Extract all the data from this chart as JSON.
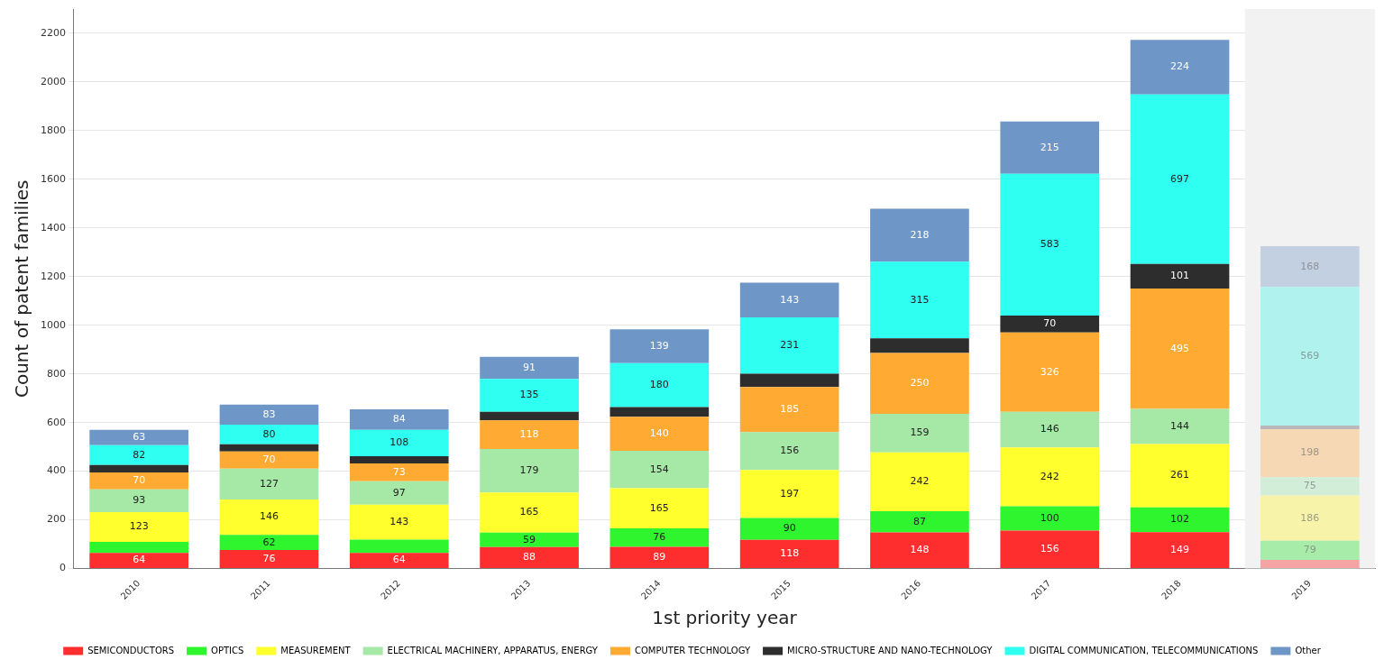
{
  "chart_data": {
    "type": "bar",
    "stacked": true,
    "xlabel": "1st priority year",
    "ylabel": "Count of patent families",
    "categories": [
      "2010",
      "2011",
      "2012",
      "2013",
      "2014",
      "2015",
      "2016",
      "2017",
      "2018",
      "2019"
    ],
    "series": [
      {
        "name": "SEMICONDUCTORS",
        "color": "#ff2e2e",
        "colors": [
          "#ff2e2e",
          "#ff2e2e",
          "#ff2e2e",
          "#ff2e2e",
          "#ff2e2e",
          "#ff2e2e",
          "#ff2e2e",
          "#ff2e2e",
          "#ff2e2e",
          "#f5a3a3"
        ],
        "values": [
          64,
          76,
          64,
          88,
          89,
          118,
          148,
          156,
          149,
          35
        ],
        "value_labels": [
          "64",
          "76",
          "64",
          "88",
          "89",
          "118",
          "148",
          "156",
          "149",
          null
        ]
      },
      {
        "name": "OPTICS",
        "color": "#2ef52e",
        "colors": [
          "#2ef52e",
          "#2ef52e",
          "#2ef52e",
          "#2ef52e",
          "#2ef52e",
          "#2ef52e",
          "#2ef52e",
          "#2ef52e",
          "#2ef52e",
          "#a8ecaa"
        ],
        "values": [
          45,
          62,
          55,
          59,
          76,
          90,
          87,
          100,
          102,
          79
        ],
        "value_labels": [
          null,
          "62",
          null,
          "59",
          "76",
          "90",
          "87",
          "100",
          "102",
          "79"
        ]
      },
      {
        "name": "MEASUREMENT",
        "color": "#ffff2e",
        "colors": [
          "#ffff2e",
          "#ffff2e",
          "#ffff2e",
          "#ffff2e",
          "#ffff2e",
          "#ffff2e",
          "#ffff2e",
          "#ffff2e",
          "#ffff2e",
          "#f7f3a8"
        ],
        "values": [
          123,
          146,
          143,
          165,
          165,
          197,
          242,
          242,
          261,
          186
        ],
        "value_labels": [
          "123",
          "146",
          "143",
          "165",
          "165",
          "197",
          "242",
          "242",
          "261",
          "186"
        ]
      },
      {
        "name": "ELECTRICAL MACHINERY, APPARATUS, ENERGY",
        "color": "#a6e8a6",
        "colors": [
          "#a6e8a6",
          "#a6e8a6",
          "#a6e8a6",
          "#a6e8a6",
          "#a6e8a6",
          "#a6e8a6",
          "#a6e8a6",
          "#a6e8a6",
          "#a6e8a6",
          "#d2eed8"
        ],
        "values": [
          93,
          127,
          97,
          179,
          154,
          156,
          159,
          146,
          144,
          75
        ],
        "value_labels": [
          "93",
          "127",
          "97",
          "179",
          "154",
          "156",
          "159",
          "146",
          "144",
          "75"
        ]
      },
      {
        "name": "COMPUTER TECHNOLOGY",
        "color": "#ffaa33",
        "colors": [
          "#ffaa33",
          "#ffaa33",
          "#ffaa33",
          "#ffaa33",
          "#ffaa33",
          "#ffaa33",
          "#ffaa33",
          "#ffaa33",
          "#ffaa33",
          "#f6d8b4"
        ],
        "values": [
          70,
          70,
          73,
          118,
          140,
          185,
          250,
          326,
          495,
          198
        ],
        "value_labels": [
          "70",
          "70",
          "73",
          "118",
          "140",
          "185",
          "250",
          "326",
          "495",
          "198"
        ]
      },
      {
        "name": "MICRO-STRUCTURE AND NANO-TECHNOLOGY",
        "color": "#2d2d2d",
        "colors": [
          "#2d2d2d",
          "#2d2d2d",
          "#2d2d2d",
          "#2d2d2d",
          "#2d2d2d",
          "#2d2d2d",
          "#2d2d2d",
          "#2d2d2d",
          "#2d2d2d",
          "#b8b8b8"
        ],
        "values": [
          30,
          30,
          30,
          35,
          40,
          55,
          60,
          70,
          101,
          15
        ],
        "value_labels": [
          null,
          null,
          null,
          null,
          null,
          null,
          null,
          "70",
          "101",
          null
        ]
      },
      {
        "name": "DIGITAL COMMUNICATION, TELECOMMUNICATIONS",
        "color": "#2efff0",
        "colors": [
          "#2efff0",
          "#2efff0",
          "#2efff0",
          "#2efff0",
          "#2efff0",
          "#2efff0",
          "#2efff0",
          "#2efff0",
          "#2efff0",
          "#b0f2ee"
        ],
        "values": [
          82,
          80,
          108,
          135,
          180,
          231,
          315,
          583,
          697,
          569
        ],
        "value_labels": [
          "82",
          "80",
          "108",
          "135",
          "180",
          "231",
          "315",
          "583",
          "697",
          "569"
        ]
      },
      {
        "name": "Other",
        "color": "#6e97c8",
        "colors": [
          "#6e97c8",
          "#6e97c8",
          "#6e97c8",
          "#6e97c8",
          "#6e97c8",
          "#6e97c8",
          "#6e97c8",
          "#6e97c8",
          "#6e97c8",
          "#c3d0e2"
        ],
        "values": [
          63,
          83,
          84,
          91,
          139,
          143,
          218,
          215,
          224,
          168
        ],
        "value_labels": [
          "63",
          "83",
          "84",
          "91",
          "139",
          "143",
          "218",
          "215",
          "224",
          "168"
        ]
      }
    ],
    "bands": [
      {
        "axis": "x",
        "from": "2019",
        "to": "2019",
        "color": "#f2f2f2"
      }
    ],
    "ylim": [
      0,
      2300
    ],
    "yticks": [
      0,
      200,
      400,
      600,
      800,
      1000,
      1200,
      1400,
      1600,
      1800,
      2000,
      2200
    ],
    "grid": "y",
    "legend": "bottom"
  }
}
